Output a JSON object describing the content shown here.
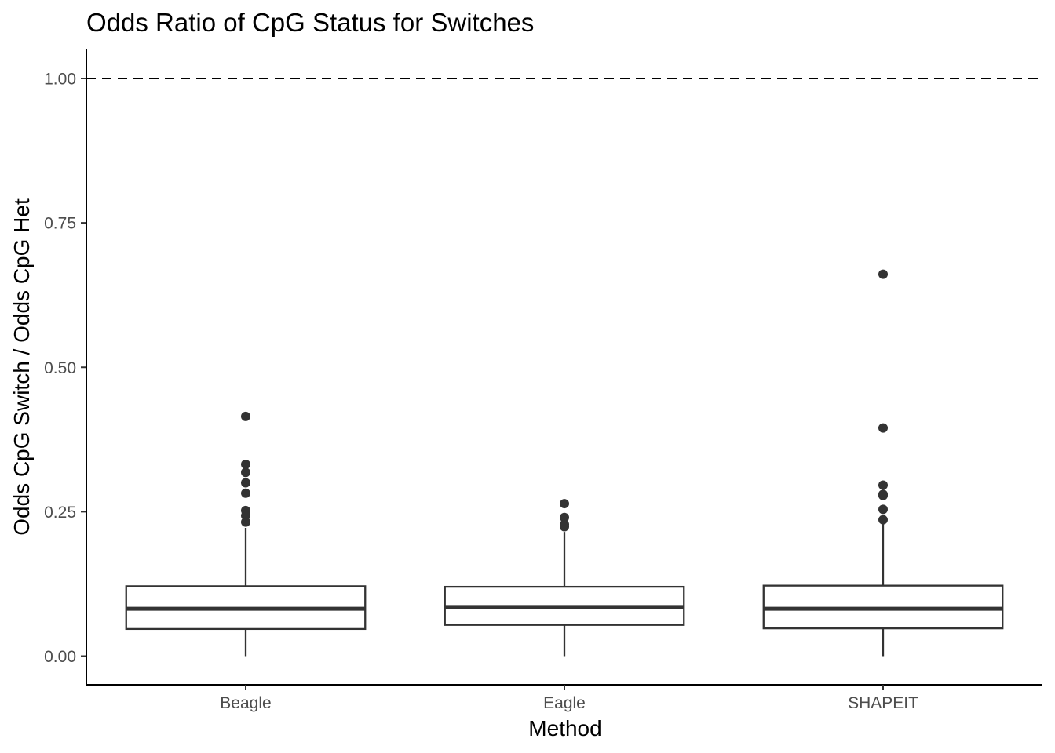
{
  "chart_data": {
    "type": "box",
    "title": "Odds Ratio of CpG Status for Switches",
    "xlabel": "Method",
    "ylabel": "Odds CpG Switch / Odds CpG Het",
    "ylim": [
      -0.05,
      1.05
    ],
    "yticks": [
      0.0,
      0.25,
      0.5,
      0.75,
      1.0
    ],
    "ytick_labels": [
      "0.00",
      "0.25",
      "0.50",
      "0.75",
      "1.00"
    ],
    "reference_line": {
      "y": 1.0,
      "style": "dashed"
    },
    "grid": false,
    "categories": [
      "Beagle",
      "Eagle",
      "SHAPEIT"
    ],
    "boxes": [
      {
        "category": "Beagle",
        "min": 0.0,
        "q1": 0.047,
        "median": 0.082,
        "q3": 0.121,
        "whisker_high": 0.222,
        "outliers": [
          0.415,
          0.332,
          0.318,
          0.3,
          0.282,
          0.252,
          0.243,
          0.232
        ]
      },
      {
        "category": "Eagle",
        "min": 0.0,
        "q1": 0.054,
        "median": 0.085,
        "q3": 0.12,
        "whisker_high": 0.215,
        "outliers": [
          0.264,
          0.24,
          0.228,
          0.224
        ]
      },
      {
        "category": "SHAPEIT",
        "min": 0.0,
        "q1": 0.048,
        "median": 0.082,
        "q3": 0.122,
        "whisker_high": 0.23,
        "outliers": [
          0.661,
          0.395,
          0.296,
          0.28,
          0.278,
          0.254,
          0.236
        ]
      }
    ],
    "colors": {
      "box_stroke": "#333333",
      "box_fill": "#ffffff",
      "point": "#333333",
      "axis": "#000000",
      "tick_text": "#4d4d4d"
    }
  }
}
